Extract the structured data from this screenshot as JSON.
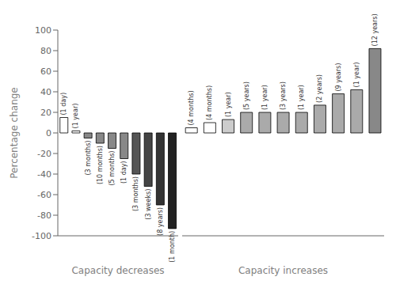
{
  "chart_data": [
    {
      "type": "bar",
      "xlabel": "Capacity decreases",
      "ylabel": "Percentage change",
      "values": [
        15,
        2,
        -5,
        -10,
        -15,
        -25,
        -40,
        -52,
        -70,
        -93
      ],
      "annotations": [
        "(1 day)",
        "(1 year)",
        "(3 months)",
        "(10 months)",
        "(5 months)",
        "(1 day)",
        "(3 months)",
        "(3 weeks)",
        "(8 years)",
        "(1 month)"
      ],
      "colors": [
        "white",
        "white",
        "#888888",
        "#888888",
        "#888888",
        "#888888",
        "#555555",
        "#444444",
        "#333333",
        "#222222"
      ],
      "ylim": [
        -100,
        100
      ],
      "yticks": [
        -100,
        -80,
        -60,
        -40,
        -20,
        0,
        20,
        40,
        60,
        80,
        100
      ],
      "tick_labels": "y",
      "grid": false
    },
    {
      "type": "bar",
      "xlabel": "Capacity increases",
      "values": [
        5,
        10,
        13,
        20,
        20,
        20,
        20,
        27,
        38,
        42,
        82
      ],
      "annotations": [
        "(4 months)",
        "(4 months)",
        "(1 year)",
        "(5 years)",
        "(1 year)",
        "(3 years)",
        "(1 year)",
        "(2 years)",
        "(9 years)",
        "(1 year)",
        "(12 years)"
      ],
      "colors": [
        "white",
        "white",
        "#cccccc",
        "#aaaaaa",
        "#aaaaaa",
        "#aaaaaa",
        "#aaaaaa",
        "#aaaaaa",
        "#aaaaaa",
        "#aaaaaa",
        "#888888"
      ],
      "ylim": [
        -100,
        100
      ],
      "yticks": [
        -100,
        -80,
        -60,
        -40,
        -20,
        0,
        20,
        40,
        60,
        80,
        100
      ],
      "tick_labels": false,
      "grid": false
    }
  ]
}
